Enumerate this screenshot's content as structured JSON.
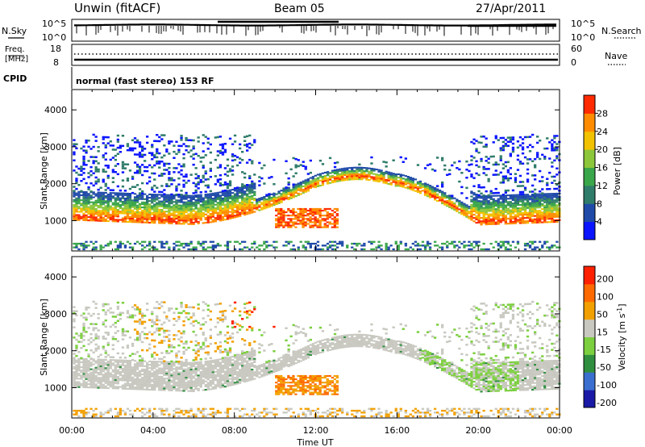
{
  "header": {
    "station": "Unwin (fitACF)",
    "beam": "Beam 05",
    "date": "27/Apr/2011"
  },
  "status_panels": {
    "nsky_label": "N.Sky",
    "nsky_ticks": [
      "10^5",
      "10^0"
    ],
    "nsearch_label": "N.Search",
    "nsearch_ticks": [
      "10^5",
      "10^0"
    ],
    "freq_label": "Freq.",
    "freq_unit": "[MHz]",
    "freq_ticks": [
      "18",
      "8"
    ],
    "nave_label": "Nave",
    "nave_ticks": [
      "60",
      "0"
    ],
    "cpid_label": "CPID",
    "cpid_text": "normal (fast stereo) 153 RF"
  },
  "chart_data": [
    {
      "type": "heatmap",
      "name": "power",
      "ylabel": "Slant Range [km]",
      "y_ticks": [
        1000,
        2000,
        3000,
        4000
      ],
      "ylim": [
        180,
        4550
      ],
      "x_ticks": [
        "00:00",
        "04:00",
        "08:00",
        "12:00",
        "16:00",
        "20:00",
        "00:00"
      ],
      "x_hours": [
        0,
        4,
        8,
        12,
        16,
        20,
        24
      ],
      "colorbar": {
        "label": "Power [dB]",
        "ticks": [
          "4",
          "8",
          "12",
          "16",
          "20",
          "24",
          "28"
        ],
        "colors": [
          "#0a14ff",
          "#1f4aa8",
          "#2f7c6a",
          "#3aa64a",
          "#8cc63a",
          "#f2c200",
          "#ff8c00",
          "#ff2a00"
        ]
      }
    },
    {
      "type": "heatmap",
      "name": "velocity",
      "ylabel": "Slant Range [km]",
      "y_ticks": [
        1000,
        2000,
        3000,
        4000
      ],
      "ylim": [
        180,
        4550
      ],
      "x_ticks": [
        "00:00",
        "04:00",
        "08:00",
        "12:00",
        "16:00",
        "20:00",
        "00:00"
      ],
      "x_hours": [
        0,
        4,
        8,
        12,
        16,
        20,
        24
      ],
      "xlabel": "Time UT",
      "colorbar": {
        "label": "Velocity [m s",
        "label_sup": "-1",
        "label_end": "]",
        "ticks": [
          "200",
          "100",
          "50",
          "15",
          "-15",
          "-50",
          "-100",
          "-200"
        ],
        "colors": [
          "#1a1aa6",
          "#3a6fd0",
          "#2f8f3f",
          "#7ccf3f",
          "#c8c8c0",
          "#f2a000",
          "#ff6a00",
          "#ff2000"
        ]
      }
    }
  ]
}
